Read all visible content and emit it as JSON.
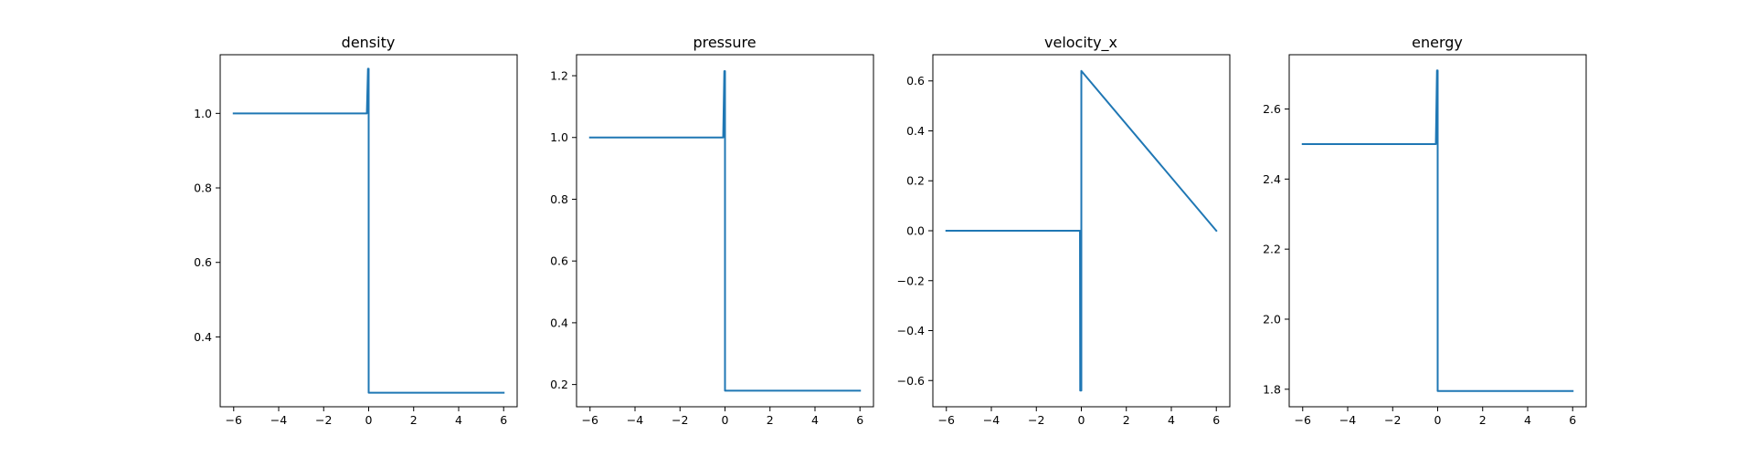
{
  "colors": {
    "line": "#1f77b4",
    "axes": "#000000",
    "background": "#ffffff"
  },
  "chart_data": [
    {
      "type": "line",
      "title": "density",
      "xlabel": "",
      "ylabel": "",
      "grid": false,
      "xlim": [
        -6.6,
        6.6
      ],
      "ylim": [
        0.2125,
        1.1575
      ],
      "xticks": [
        -6,
        -4,
        -2,
        0,
        2,
        4,
        6
      ],
      "xtick_labels": [
        "−6",
        "−4",
        "−2",
        "0",
        "2",
        "4",
        "6"
      ],
      "yticks": [
        0.4,
        0.6,
        0.8,
        1.0
      ],
      "ytick_labels": [
        "0.4",
        "0.6",
        "0.8",
        "1.0"
      ],
      "series": [
        {
          "x": [
            -6,
            -0.08,
            -0.03,
            0,
            0,
            0.03,
            6
          ],
          "y": [
            1.0,
            1.0,
            1.12,
            1.12,
            0.25,
            0.25,
            0.25
          ]
        }
      ]
    },
    {
      "type": "line",
      "title": "pressure",
      "xlabel": "",
      "ylabel": "",
      "grid": false,
      "xlim": [
        -6.6,
        6.6
      ],
      "ylim": [
        0.128,
        1.268
      ],
      "xticks": [
        -6,
        -4,
        -2,
        0,
        2,
        4,
        6
      ],
      "xtick_labels": [
        "−6",
        "−4",
        "−2",
        "0",
        "2",
        "4",
        "6"
      ],
      "yticks": [
        0.2,
        0.4,
        0.6,
        0.8,
        1.0,
        1.2
      ],
      "ytick_labels": [
        "0.2",
        "0.4",
        "0.6",
        "0.8",
        "1.0",
        "1.2"
      ],
      "series": [
        {
          "x": [
            -6,
            -0.08,
            -0.03,
            0,
            0,
            0.03,
            6
          ],
          "y": [
            1.0,
            1.0,
            1.215,
            1.215,
            0.18,
            0.18,
            0.18
          ]
        }
      ]
    },
    {
      "type": "line",
      "title": "velocity_x",
      "xlabel": "",
      "ylabel": "",
      "grid": false,
      "xlim": [
        -6.6,
        6.6
      ],
      "ylim": [
        -0.705,
        0.705
      ],
      "xticks": [
        -6,
        -4,
        -2,
        0,
        2,
        4,
        6
      ],
      "xtick_labels": [
        "−6",
        "−4",
        "−2",
        "0",
        "2",
        "4",
        "6"
      ],
      "yticks": [
        -0.6,
        -0.4,
        -0.2,
        0.0,
        0.2,
        0.4,
        0.6
      ],
      "ytick_labels": [
        "−0.6",
        "−0.4",
        "−0.2",
        "0.0",
        "0.2",
        "0.4",
        "0.6"
      ],
      "series": [
        {
          "x": [
            -6,
            -0.06,
            -0.05,
            0,
            0,
            6
          ],
          "y": [
            0.0,
            0.0,
            -0.64,
            -0.64,
            0.64,
            0.0
          ]
        }
      ]
    },
    {
      "type": "line",
      "title": "energy",
      "xlabel": "",
      "ylabel": "",
      "grid": false,
      "xlim": [
        -6.6,
        6.6
      ],
      "ylim": [
        1.75,
        2.755
      ],
      "xticks": [
        -6,
        -4,
        -2,
        0,
        2,
        4,
        6
      ],
      "xtick_labels": [
        "−6",
        "−4",
        "−2",
        "0",
        "2",
        "4",
        "6"
      ],
      "yticks": [
        1.8,
        2.0,
        2.2,
        2.4,
        2.6
      ],
      "ytick_labels": [
        "1.8",
        "2.0",
        "2.2",
        "2.4",
        "2.6"
      ],
      "series": [
        {
          "x": [
            -6,
            -0.08,
            -0.03,
            0,
            0,
            0.03,
            6
          ],
          "y": [
            2.5,
            2.5,
            2.71,
            2.71,
            1.795,
            1.795,
            1.795
          ]
        }
      ]
    }
  ]
}
